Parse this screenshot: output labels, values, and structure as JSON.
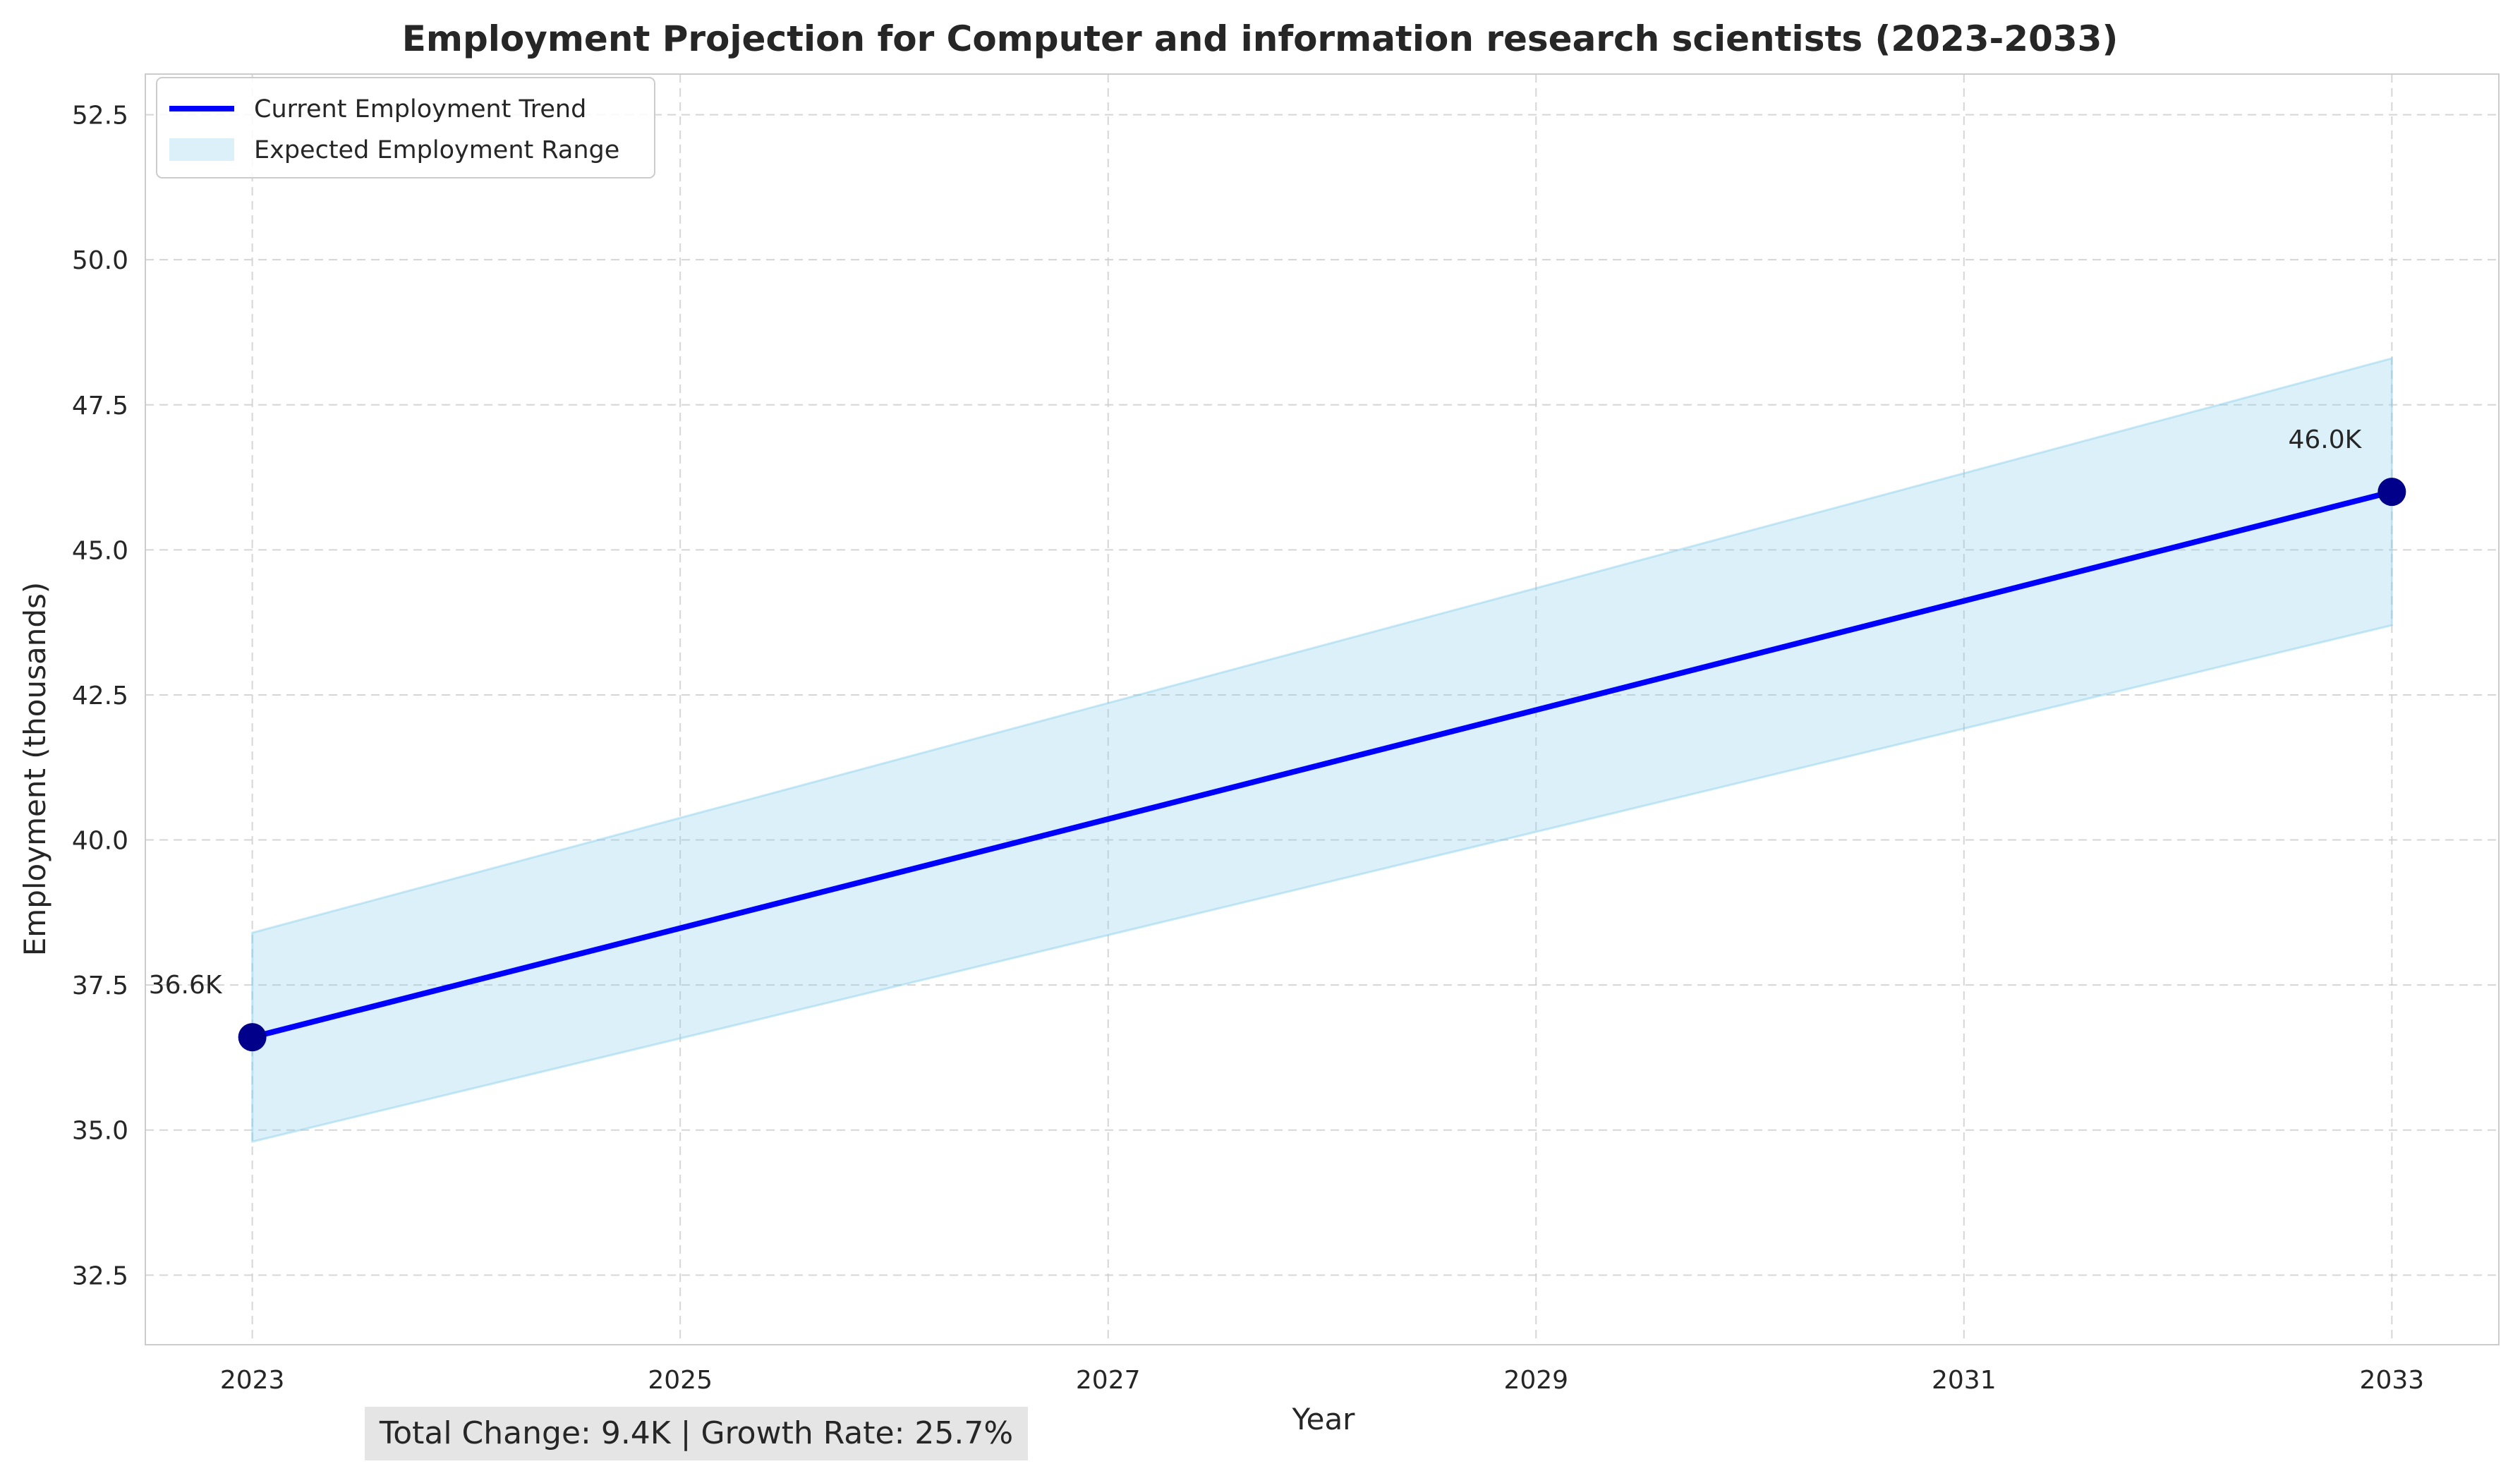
{
  "chart_data": {
    "type": "line",
    "title": "Employment Projection for Computer and information research scientists (2023-2033)",
    "xlabel": "Year",
    "ylabel": "Employment (thousands)",
    "xlim": [
      2022.5,
      2033.5
    ],
    "ylim": [
      31.3,
      53.2
    ],
    "x_ticks": [
      2023,
      2025,
      2027,
      2029,
      2031,
      2033
    ],
    "y_ticks": [
      32.5,
      35.0,
      37.5,
      40.0,
      42.5,
      45.0,
      47.5,
      50.0,
      52.5
    ],
    "grid": true,
    "legend_position": "top-left",
    "series": [
      {
        "name": "Current Employment Trend",
        "type": "line",
        "color": "#0000ff",
        "x": [
          2023,
          2033
        ],
        "values": [
          36.6,
          46.0
        ]
      }
    ],
    "band": {
      "name": "Expected Employment Range",
      "color": "#87ceeb",
      "x": [
        2023,
        2033
      ],
      "lower": [
        34.8,
        43.7
      ],
      "upper": [
        38.4,
        48.3
      ]
    },
    "markers": {
      "color": "#00008b",
      "x": [
        2023,
        2033
      ],
      "values": [
        36.6,
        46.0
      ],
      "labels": [
        "36.6K",
        "46.0K"
      ]
    },
    "summary": "Total Change: 9.4K | Growth Rate: 25.7%"
  }
}
